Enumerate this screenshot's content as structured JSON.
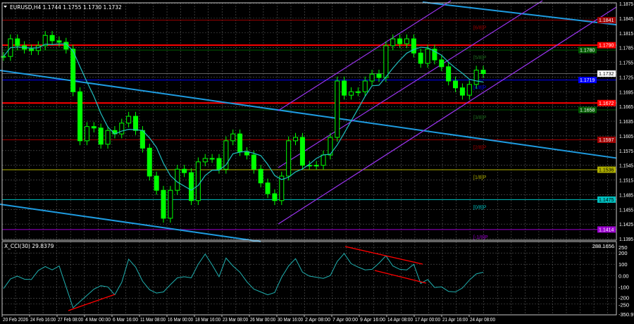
{
  "header": {
    "symbol": "EURUSD,H4",
    "ohlc": "1.1744 1.1755 1.1730 1.1732"
  },
  "indicator": {
    "label": "X_CCI(30) 29.8379"
  },
  "colors": {
    "background": "#000000",
    "candle": "#00ff00",
    "ma": "#20c0c0",
    "trend_channel": "#1e9be0",
    "regression_channel": "#9933ee",
    "divergence": "#ff0000",
    "cci": "#20b0b0"
  },
  "chart_data": {
    "type": "candlestick",
    "symbol": "EURUSD",
    "timeframe": "H4",
    "grid": true,
    "price_axis": {
      "range": [
        1.1395,
        1.1875
      ],
      "ticks": [
        "1.1875",
        "1.1845",
        "1.1815",
        "1.1785",
        "1.1755",
        "1.1725",
        "1.1695",
        "1.1665",
        "1.1635",
        "1.1605",
        "1.1575",
        "1.1545",
        "1.1515",
        "1.1485",
        "1.1455",
        "1.1425",
        "1.1395"
      ]
    },
    "time_axis": {
      "ticks": [
        "20 Feb 2026",
        "24 Feb 16:00",
        "27 Feb 08:00",
        "4 Mar 00:00",
        "6 Mar 16:00",
        "11 Mar 08:00",
        "16 Mar 00:00",
        "18 Mar 16:00",
        "23 Mar 08:00",
        "26 Mar 00:00",
        "30 Mar 16:00",
        "2 Apr 08:00",
        "7 Apr 00:00",
        "9 Apr 16:00",
        "14 Apr 08:00",
        "17 Apr 00:00",
        "21 Apr 16:00",
        "24 Apr 08:00"
      ]
    },
    "closes": [
      1.1767,
      1.1803,
      1.1789,
      1.1782,
      1.1779,
      1.1789,
      1.181,
      1.1799,
      1.1796,
      1.1782,
      1.1695,
      1.1595,
      1.1624,
      1.1621,
      1.1588,
      1.1616,
      1.1609,
      1.1631,
      1.1645,
      1.1616,
      1.158,
      1.1523,
      1.1494,
      1.1437,
      1.1494,
      1.1537,
      1.153,
      1.1473,
      1.1552,
      1.1559,
      1.1559,
      1.1537,
      1.1595,
      1.1609,
      1.1573,
      1.1566,
      1.1537,
      1.1509,
      1.1487,
      1.1473,
      1.1523,
      1.1595,
      1.1602,
      1.1545,
      1.1545,
      1.1545,
      1.1566,
      1.1602,
      1.1717,
      1.1688,
      1.1695,
      1.1695,
      1.1717,
      1.1731,
      1.1724,
      1.1789,
      1.1803,
      1.1793,
      1.1803,
      1.1774,
      1.1753,
      1.1782,
      1.176,
      1.1746,
      1.1717,
      1.1703,
      1.1688,
      1.171,
      1.1739,
      1.1732
    ],
    "last_price": {
      "value": "1.1732",
      "color": "#ffffff"
    },
    "levels": [
      {
        "price": "1.1841",
        "label": "[6/8]P",
        "color": "#a00000",
        "width": 1
      },
      {
        "price": "1.1790",
        "label": "",
        "color": "#ff0000",
        "width": 2
      },
      {
        "price": "1.1780",
        "label": "[5/8]P",
        "color": "#005a00",
        "width": 1
      },
      {
        "price": "1.1719",
        "label": "[4/8]P",
        "color": "#0000ff",
        "width": 1
      },
      {
        "price": "1.1672",
        "label": "",
        "color": "#ff0000",
        "width": 2
      },
      {
        "price": "1.1658",
        "label": "[3/8]P",
        "color": "#005a00",
        "width": 1
      },
      {
        "price": "1.1597",
        "label": "[2/8]P",
        "color": "#a00000",
        "width": 1
      },
      {
        "price": "1.1536",
        "label": "[1/8]P",
        "color": "#b0b000",
        "width": 1
      },
      {
        "price": "1.1475",
        "label": "[0/8]P",
        "color": "#00c0c0",
        "width": 1
      },
      {
        "price": "1.1414",
        "label": "[-1/8]P",
        "color": "#9900cc",
        "width": 1
      }
    ],
    "cci": {
      "period": 30,
      "current": 29.8379,
      "axis_ticks": [
        "288.1656",
        "250",
        "200",
        "100",
        "0.00",
        "-100",
        "-200",
        "-250",
        "-350.973"
      ],
      "range": [
        -350.973,
        288.1656
      ],
      "values": [
        -115,
        -30,
        -5,
        -32,
        -35,
        45,
        80,
        50,
        85,
        -100,
        -285,
        -230,
        -175,
        -120,
        -90,
        -100,
        -170,
        -60,
        145,
        75,
        -50,
        -125,
        -155,
        -145,
        -80,
        -20,
        -10,
        -20,
        100,
        190,
        95,
        -10,
        155,
        85,
        30,
        -55,
        -120,
        -145,
        -170,
        -150,
        -15,
        85,
        150,
        30,
        -5,
        -15,
        -25,
        0,
        125,
        195,
        105,
        75,
        50,
        55,
        110,
        175,
        85,
        55,
        50,
        100,
        -70,
        -35,
        -105,
        -100,
        -140,
        -145,
        -110,
        -40,
        15,
        29.84
      ]
    }
  }
}
